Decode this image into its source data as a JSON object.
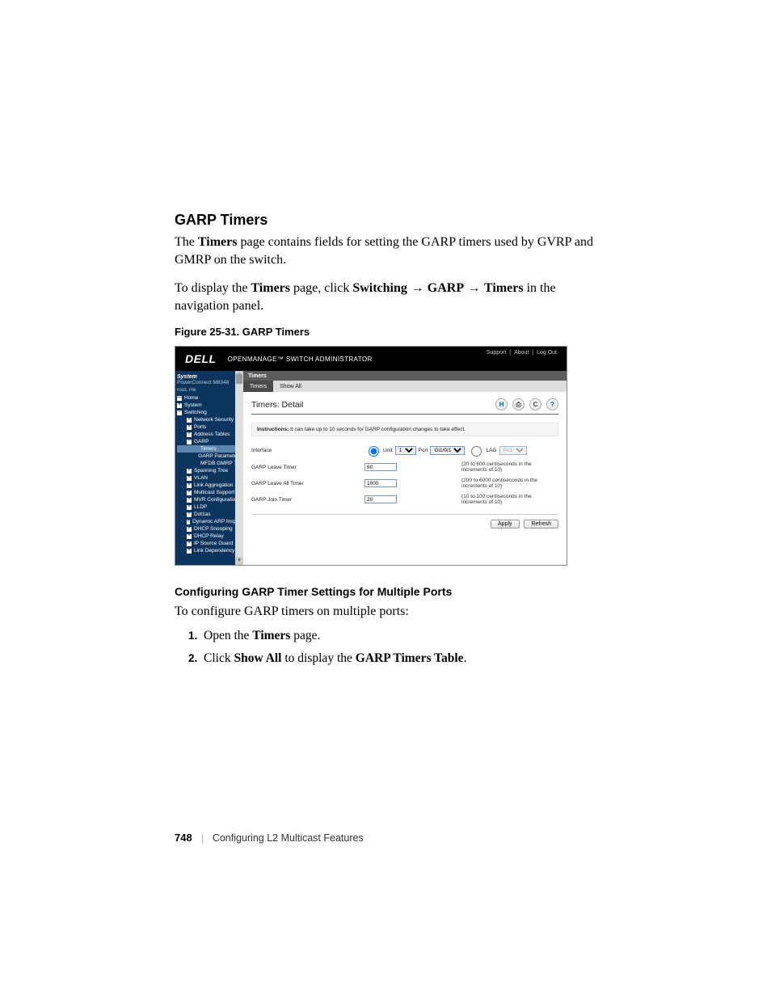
{
  "heading": "GARP Timers",
  "para1_prefix": "The ",
  "para1_strong": "Timers",
  "para1_rest": " page contains fields for setting the GARP timers used by GVRP and GMRP on the switch.",
  "para2_prefix": "To display the ",
  "para2_strong1": "Timers",
  "para2_mid1": " page, click ",
  "para2_strong2": "Switching",
  "para2_arrow": " → ",
  "para2_strong3": "GARP",
  "para2_strong4": "Timers",
  "para2_rest": " in the navigation panel.",
  "figure_caption": "Figure 25-31.    GARP Timers",
  "shot": {
    "brand": "DELL",
    "app_title": "OPENMANAGE™ SWITCH ADMINISTRATOR",
    "links": [
      "Support",
      "About",
      "Log Out"
    ],
    "nav": {
      "system": "System",
      "device": "PowerConnect M8348",
      "user": "root, r/w",
      "items": [
        {
          "lvl": 0,
          "box": "—",
          "label": "Home"
        },
        {
          "lvl": 0,
          "box": "+",
          "label": "System"
        },
        {
          "lvl": 0,
          "box": "−",
          "label": "Switching"
        },
        {
          "lvl": 1,
          "box": "+",
          "label": "Network Security"
        },
        {
          "lvl": 1,
          "box": "+",
          "label": "Ports"
        },
        {
          "lvl": 1,
          "box": "+",
          "label": "Address Tables"
        },
        {
          "lvl": 1,
          "box": "−",
          "label": "GARP"
        },
        {
          "lvl": 2,
          "box": "",
          "label": "Timers",
          "active": true
        },
        {
          "lvl": 2,
          "box": "",
          "label": "GARP Parameters"
        },
        {
          "lvl": 2,
          "box": "",
          "label": "MFDB GMRP Ta"
        },
        {
          "lvl": 1,
          "box": "+",
          "label": "Spanning Tree"
        },
        {
          "lvl": 1,
          "box": "+",
          "label": "VLAN"
        },
        {
          "lvl": 1,
          "box": "+",
          "label": "Link Aggregation"
        },
        {
          "lvl": 1,
          "box": "+",
          "label": "Multicast Support"
        },
        {
          "lvl": 1,
          "box": "+",
          "label": "MVR Configuration"
        },
        {
          "lvl": 1,
          "box": "+",
          "label": "LLDP"
        },
        {
          "lvl": 1,
          "box": "+",
          "label": "Dot1as"
        },
        {
          "lvl": 1,
          "box": "+",
          "label": "Dynamic ARP Inspec"
        },
        {
          "lvl": 1,
          "box": "+",
          "label": "DHCP Snooping"
        },
        {
          "lvl": 1,
          "box": "+",
          "label": "DHCP Relay"
        },
        {
          "lvl": 1,
          "box": "+",
          "label": "IP Source Guard"
        },
        {
          "lvl": 1,
          "box": "+",
          "label": "Link Dependency"
        }
      ]
    },
    "breadcrumb": "Timers",
    "tabs": [
      {
        "label": "Timers",
        "active": true
      },
      {
        "label": "Show All",
        "active": false
      }
    ],
    "panel_title": "Timers: Detail",
    "icons": {
      "save": "H",
      "print": "⎙",
      "refresh": "C",
      "help": "?"
    },
    "instructions_label": "Instructions:",
    "instructions_text": " It can take up to 10 seconds for GARP configuration changes to take effect.",
    "rows": {
      "interface": {
        "label": "Interface",
        "unit_label": "Unit",
        "unit_value": "1",
        "port_label": "Port",
        "port_value": "Gi1/0/1",
        "lag_label": "LAG",
        "lag_value": "Po1"
      },
      "leave": {
        "label": "GARP Leave Timer",
        "value": "60",
        "hint": "(20 to 600 centiseconds in the increments of 10)"
      },
      "leaveall": {
        "label": "GARP Leave All Timer",
        "value": "1000",
        "hint": "(200 to 6000 centiseconds in the increments of 10)"
      },
      "join": {
        "label": "GARP Join Timer",
        "value": "20",
        "hint": "(10 to 100 centiseconds in the increments of 10)"
      }
    },
    "buttons": {
      "apply": "Apply",
      "refresh": "Refresh"
    }
  },
  "sub_heading": "Configuring GARP Timer Settings for Multiple Ports",
  "sub_para": "To configure GARP timers on multiple ports:",
  "steps": {
    "s1_prefix": "Open the ",
    "s1_strong": "Timers",
    "s1_rest": " page.",
    "s2_prefix": "Click ",
    "s2_strong1": "Show All",
    "s2_mid": " to display the ",
    "s2_strong2": "GARP Timers Table",
    "s2_rest": "."
  },
  "footer": {
    "page": "748",
    "chapter": "Configuring L2 Multicast Features"
  }
}
